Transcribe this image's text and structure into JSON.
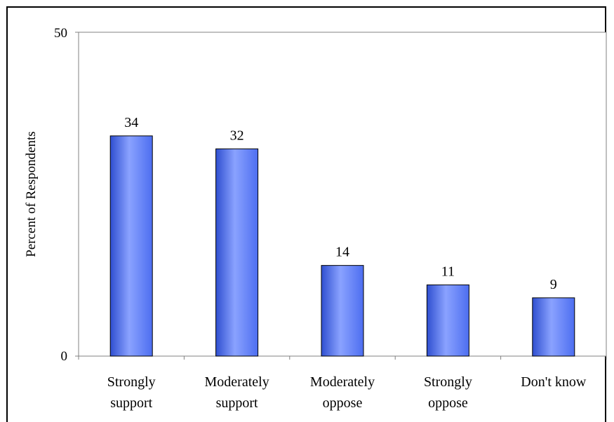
{
  "chart_data": {
    "type": "bar",
    "categories": [
      [
        "Strongly",
        "support"
      ],
      [
        "Moderately",
        "support"
      ],
      [
        "Moderately",
        "oppose"
      ],
      [
        "Strongly",
        "oppose"
      ],
      [
        "Don't know"
      ]
    ],
    "values": [
      34,
      32,
      14,
      11,
      9
    ],
    "data_labels": [
      "34",
      "32",
      "14",
      "11",
      "9"
    ],
    "ylabel": "Percent of Respondents",
    "ylim": [
      0,
      50
    ],
    "yticks": [
      "0",
      "50"
    ],
    "grid": false,
    "legend": "none",
    "colors": {
      "bar_light": "#8aa2ff",
      "bar_mid": "#4d6ef0",
      "bar_dark": "#2f4fd0",
      "axis": "#808080"
    }
  }
}
